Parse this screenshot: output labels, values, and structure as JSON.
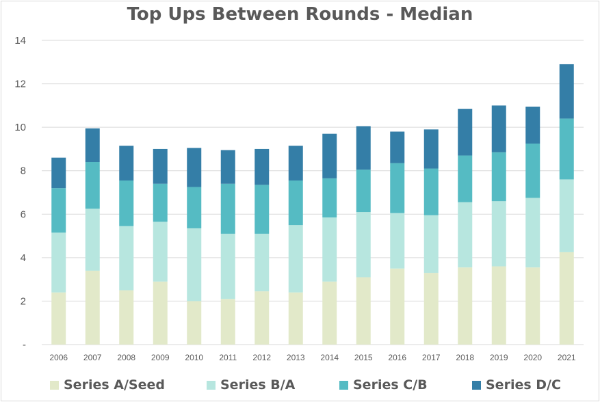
{
  "chart_data": {
    "type": "bar",
    "stacked": true,
    "title": "Top Ups Between Rounds - Median",
    "xlabel": "",
    "ylabel": "",
    "ylim": [
      0,
      14
    ],
    "yticks": [
      "-",
      "2",
      "4",
      "6",
      "8",
      "10",
      "12",
      "14"
    ],
    "grid": true,
    "legend_position": "bottom",
    "categories": [
      "2006",
      "2007",
      "2008",
      "2009",
      "2010",
      "2011",
      "2012",
      "2013",
      "2014",
      "2015",
      "2016",
      "2017",
      "2018",
      "2019",
      "2020",
      "2021"
    ],
    "series": [
      {
        "name": "Series A/Seed",
        "color": "#e2e9c9",
        "values": [
          2.4,
          3.4,
          2.5,
          2.9,
          2.0,
          2.1,
          2.45,
          2.4,
          2.9,
          3.1,
          3.5,
          3.3,
          3.55,
          3.6,
          3.55,
          4.25
        ]
      },
      {
        "name": "Series B/A",
        "color": "#b7e6df",
        "values": [
          2.75,
          2.85,
          2.95,
          2.75,
          3.35,
          3.0,
          2.65,
          3.1,
          2.95,
          3.0,
          2.55,
          2.65,
          3.0,
          3.0,
          3.2,
          3.35
        ]
      },
      {
        "name": "Series C/B",
        "color": "#55bbc3",
        "values": [
          2.05,
          2.15,
          2.1,
          1.75,
          1.9,
          2.3,
          2.25,
          2.05,
          1.8,
          1.95,
          2.3,
          2.15,
          2.15,
          2.25,
          2.5,
          2.8
        ]
      },
      {
        "name": "Series D/C",
        "color": "#347ea7",
        "values": [
          1.4,
          1.55,
          1.6,
          1.6,
          1.8,
          1.55,
          1.65,
          1.6,
          2.05,
          2.0,
          1.45,
          1.8,
          2.15,
          2.15,
          1.7,
          2.5
        ]
      }
    ]
  }
}
